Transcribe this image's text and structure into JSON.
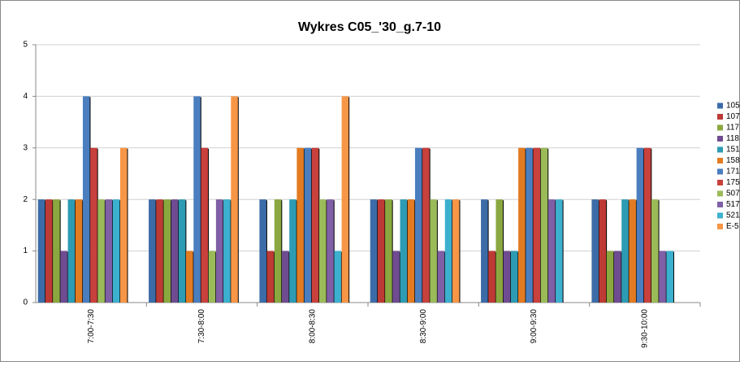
{
  "chart_data": {
    "type": "bar",
    "title": "Wykres C05_'30_g.7-10",
    "categories": [
      "7:00-7:30",
      "7:30-8:00",
      "8:00-8:30",
      "8:30-9:00",
      "9:00-9:30",
      "9:30-10:00"
    ],
    "series": [
      {
        "name": "105",
        "color": "#3c6ca8",
        "values": [
          2,
          2,
          2,
          2,
          2,
          2
        ]
      },
      {
        "name": "107",
        "color": "#be3a35",
        "values": [
          2,
          2,
          1,
          2,
          1,
          2
        ]
      },
      {
        "name": "117",
        "color": "#8aa83f",
        "values": [
          2,
          2,
          2,
          2,
          2,
          1
        ]
      },
      {
        "name": "118",
        "color": "#6f4c91",
        "values": [
          1,
          2,
          1,
          1,
          1,
          1
        ]
      },
      {
        "name": "151",
        "color": "#2d9bb3",
        "values": [
          2,
          2,
          2,
          2,
          1,
          2
        ]
      },
      {
        "name": "158",
        "color": "#e27b22",
        "values": [
          2,
          1,
          3,
          2,
          3,
          2
        ]
      },
      {
        "name": "171",
        "color": "#4a7ebf",
        "values": [
          4,
          4,
          3,
          3,
          3,
          3
        ]
      },
      {
        "name": "175",
        "color": "#c8413c",
        "values": [
          3,
          3,
          3,
          3,
          3,
          3
        ]
      },
      {
        "name": "507",
        "color": "#9bbb59",
        "values": [
          2,
          1,
          2,
          2,
          3,
          2
        ]
      },
      {
        "name": "517",
        "color": "#7f5fa6",
        "values": [
          2,
          2,
          2,
          1,
          2,
          1
        ]
      },
      {
        "name": "521",
        "color": "#3cb0cf",
        "values": [
          2,
          2,
          1,
          2,
          2,
          1
        ]
      },
      {
        "name": "E-5",
        "color": "#f79646",
        "values": [
          3,
          4,
          4,
          2,
          0,
          0
        ]
      }
    ],
    "ylim": [
      0,
      5
    ],
    "yticks": [
      0,
      1,
      2,
      3,
      4,
      5
    ],
    "grid": true,
    "legend": "right"
  }
}
